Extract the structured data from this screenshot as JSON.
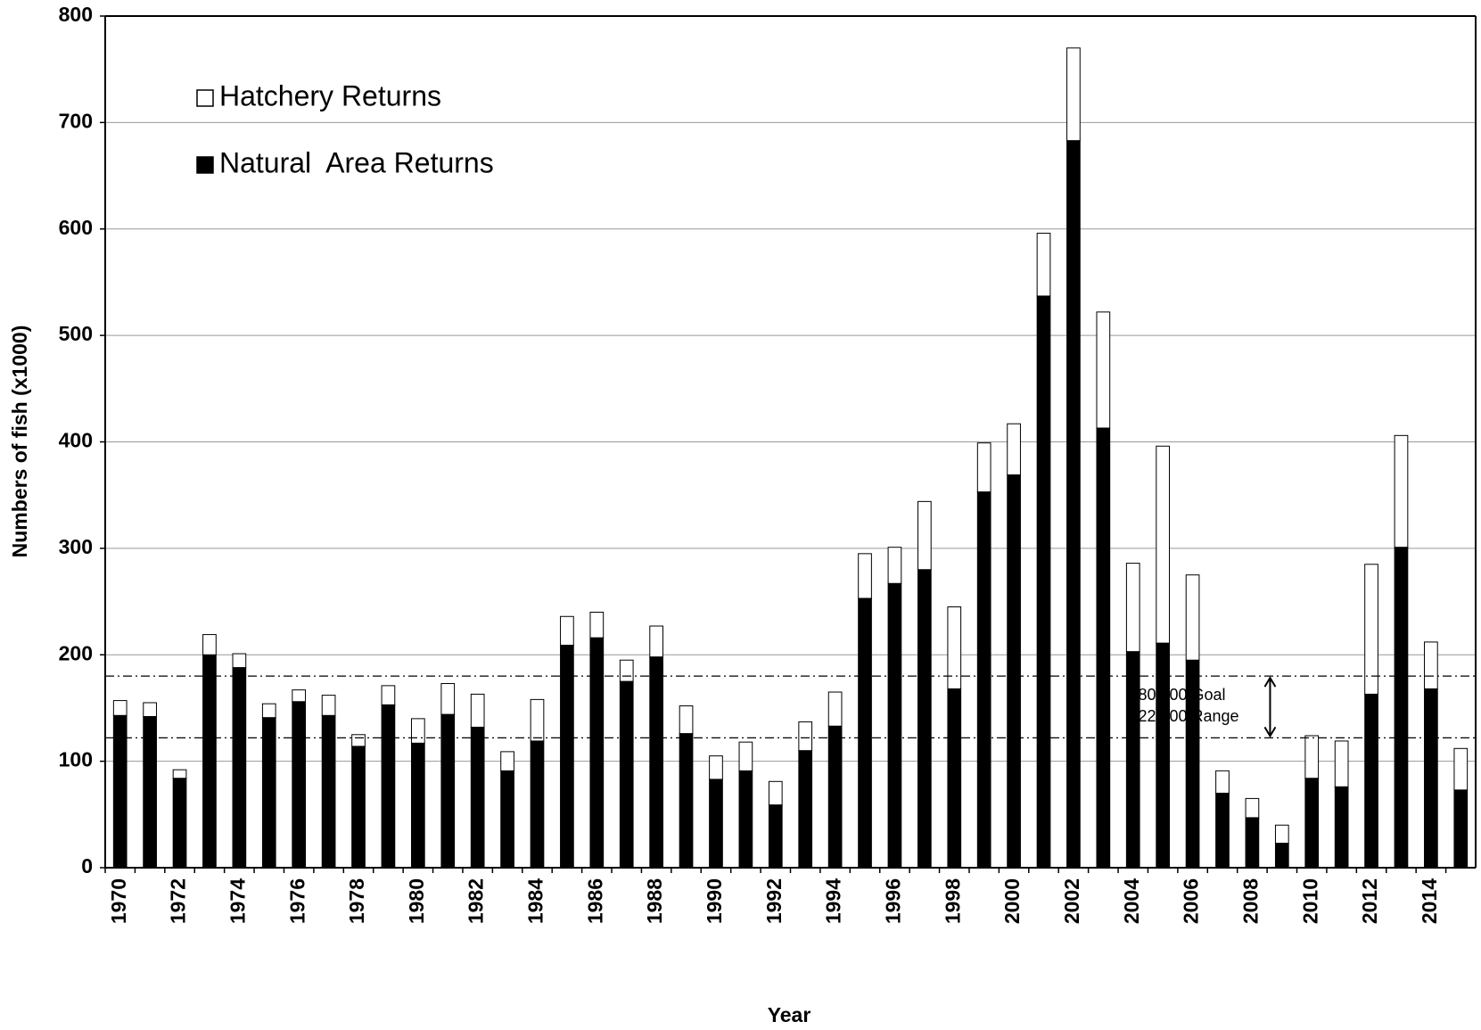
{
  "chart_data": {
    "type": "stacked_bar",
    "x_label": "Year",
    "y_label": "Numbers of fish (x1000)",
    "categories": [
      "1970",
      null,
      "1972",
      null,
      "1974",
      null,
      "1976",
      null,
      "1978",
      null,
      "1980",
      null,
      "1982",
      null,
      "1984",
      null,
      "1986",
      null,
      "1988",
      null,
      "1990",
      null,
      "1992",
      null,
      "1994",
      null,
      "1996",
      null,
      "1998",
      null,
      "2000",
      null,
      "2002",
      null,
      "2004",
      null,
      "2006",
      null,
      "2008",
      null,
      "2010",
      null,
      "2012",
      null,
      "2014",
      null
    ],
    "series": [
      {
        "name": "Natural  Area Returns",
        "color": "#000000",
        "values": [
          143,
          142,
          84,
          200,
          188,
          141,
          156,
          143,
          114,
          153,
          117,
          144,
          132,
          91,
          119,
          209,
          216,
          175,
          198,
          126,
          83,
          91,
          59,
          110,
          133,
          253,
          267,
          280,
          168,
          353,
          369,
          537,
          683,
          413,
          203,
          211,
          195,
          70,
          47,
          23,
          84,
          76,
          163,
          301,
          168,
          73
        ]
      },
      {
        "name": "Hatchery Returns",
        "color": "#ffffff",
        "values": [
          14,
          13,
          8,
          19,
          13,
          13,
          11,
          19,
          11,
          18,
          23,
          29,
          31,
          18,
          39,
          27,
          24,
          20,
          29,
          26,
          22,
          27,
          22,
          27,
          32,
          42,
          34,
          64,
          77,
          46,
          48,
          59,
          87,
          109,
          83,
          185,
          80,
          21,
          18,
          17,
          40,
          43,
          122,
          105,
          44,
          39
        ]
      }
    ],
    "ylim": [
      0,
      800
    ],
    "yticks": [
      0,
      100,
      200,
      300,
      400,
      500,
      600,
      700,
      800
    ],
    "grid": true,
    "legend": "upper left",
    "reference_lines": [
      {
        "value": 180,
        "label": "180,000  Goal"
      },
      {
        "value": 122,
        "label": "122,000 Range"
      }
    ]
  }
}
